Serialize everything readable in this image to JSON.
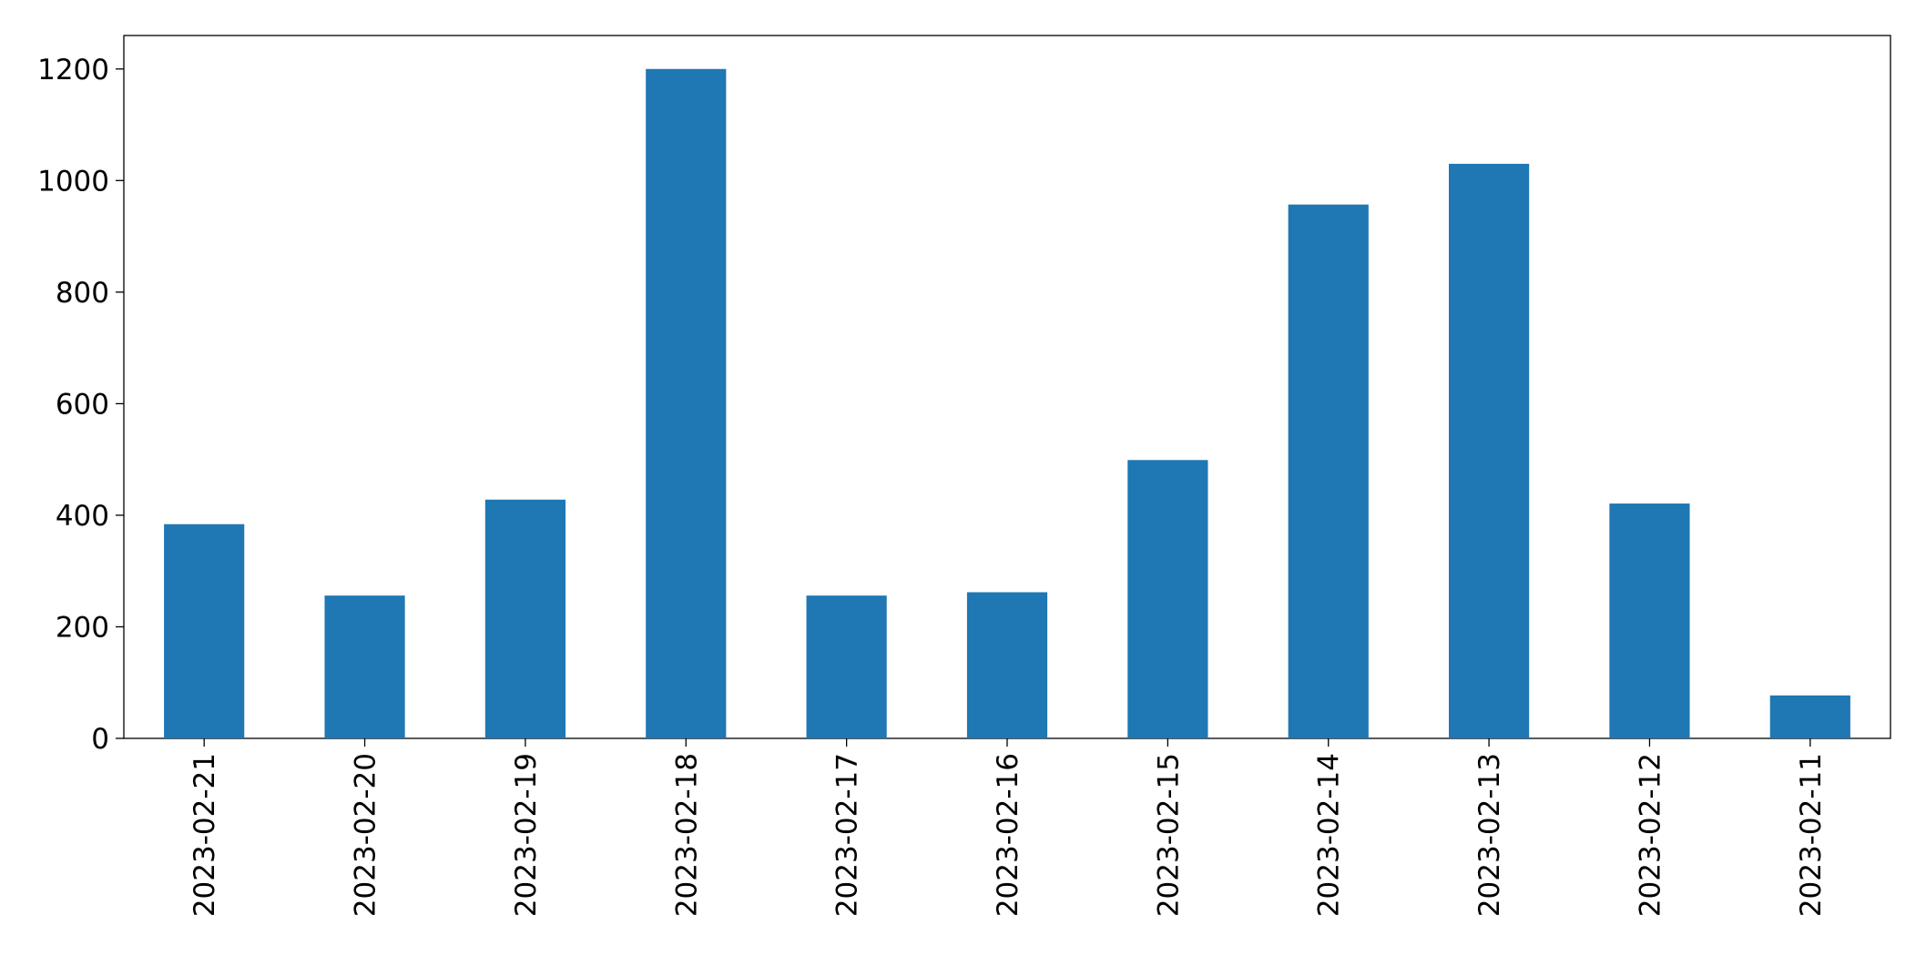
{
  "chart_data": {
    "type": "bar",
    "categories": [
      "2023-02-21",
      "2023-02-20",
      "2023-02-19",
      "2023-02-18",
      "2023-02-17",
      "2023-02-16",
      "2023-02-15",
      "2023-02-14",
      "2023-02-13",
      "2023-02-12",
      "2023-02-11"
    ],
    "values": [
      384,
      256,
      428,
      1200,
      256,
      262,
      499,
      957,
      1030,
      421,
      77
    ],
    "color": "#1f77b4",
    "ylim": [
      0,
      1260
    ],
    "yticks": [
      0,
      200,
      400,
      600,
      800,
      1000,
      1200
    ],
    "grid": false
  }
}
